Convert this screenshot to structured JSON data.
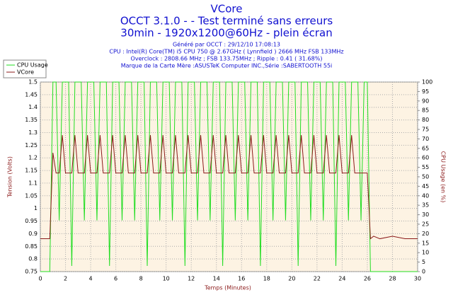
{
  "chart_data": {
    "type": "line",
    "title": "VCore",
    "subtitle": [
      "OCCT 3.1.0 -  - Test terminé sans erreurs",
      "30min - 1920x1200@60Hz - plein écran"
    ],
    "info": [
      "Généré par OCCT : 29/12/10 17:08:13",
      "CPU : Intel(R) Core(TM) i5 CPU 750 @ 2.67GHz ( Lynnfield ) 2666 MHz FSB 133MHz",
      "Overclock : 2808.66 MHz ; FSB 133.75MHz ; Ripple : 0.41 ( 31.68%)",
      "Marque de la Carte Mère :ASUSTeK Computer INC.,Série :SABERTOOTH 55i"
    ],
    "xlabel": "Temps (Minutes)",
    "ylabel": "Tension (Volts)",
    "y2label": "CPU Usage (en %)",
    "xlim": [
      0,
      30
    ],
    "xticks": [
      0,
      2,
      4,
      6,
      8,
      10,
      12,
      14,
      16,
      18,
      20,
      22,
      24,
      26,
      28,
      30
    ],
    "ylim": [
      0.75,
      1.5
    ],
    "yticks": [
      0.75,
      0.8,
      0.85,
      0.9,
      0.95,
      1,
      1.05,
      1.1,
      1.15,
      1.2,
      1.25,
      1.3,
      1.35,
      1.4,
      1.45,
      1.5
    ],
    "y2lim": [
      0,
      100
    ],
    "y2ticks": [
      0,
      5,
      10,
      15,
      20,
      25,
      30,
      35,
      40,
      45,
      50,
      55,
      60,
      65,
      70,
      75,
      80,
      85,
      90,
      95,
      100
    ],
    "grid": true,
    "legend": "top-left",
    "x": [
      0,
      0.25,
      0.5,
      0.75,
      1,
      1.25,
      1.5,
      1.75,
      2,
      2.25,
      2.5,
      2.75,
      3,
      3.25,
      3.5,
      3.75,
      4,
      4.25,
      4.5,
      4.75,
      5,
      5.25,
      5.5,
      5.75,
      6,
      6.25,
      6.5,
      6.75,
      7,
      7.25,
      7.5,
      7.75,
      8,
      8.25,
      8.5,
      8.75,
      9,
      9.25,
      9.5,
      9.75,
      10,
      10.25,
      10.5,
      10.75,
      11,
      11.25,
      11.5,
      11.75,
      12,
      12.25,
      12.5,
      12.75,
      13,
      13.25,
      13.5,
      13.75,
      14,
      14.25,
      14.5,
      14.75,
      15,
      15.25,
      15.5,
      15.75,
      16,
      16.25,
      16.5,
      16.75,
      17,
      17.25,
      17.5,
      17.75,
      18,
      18.25,
      18.5,
      18.75,
      19,
      19.25,
      19.5,
      19.75,
      20,
      20.25,
      20.5,
      20.75,
      21,
      21.25,
      21.5,
      21.75,
      22,
      22.25,
      22.5,
      22.75,
      23,
      23.25,
      23.5,
      23.75,
      24,
      24.25,
      24.5,
      24.75,
      25,
      25.25,
      25.5,
      25.75,
      26,
      26.25,
      26.5,
      27,
      28,
      29,
      30
    ],
    "series": [
      {
        "name": "CPU Usage",
        "color": "#22dd22",
        "axis": "y2",
        "values": [
          0,
          0,
          0,
          0,
          100,
          100,
          27,
          100,
          100,
          100,
          3,
          100,
          100,
          100,
          27,
          100,
          100,
          100,
          27,
          100,
          100,
          100,
          3,
          100,
          100,
          100,
          27,
          100,
          100,
          100,
          27,
          100,
          100,
          100,
          3,
          100,
          100,
          100,
          27,
          100,
          100,
          100,
          27,
          100,
          100,
          100,
          3,
          100,
          100,
          100,
          27,
          100,
          100,
          100,
          27,
          100,
          100,
          100,
          3,
          100,
          100,
          100,
          27,
          100,
          100,
          100,
          27,
          100,
          100,
          100,
          3,
          100,
          100,
          100,
          27,
          100,
          100,
          100,
          27,
          100,
          100,
          100,
          3,
          100,
          100,
          100,
          27,
          100,
          100,
          100,
          27,
          100,
          100,
          100,
          3,
          100,
          100,
          100,
          27,
          100,
          100,
          100,
          27,
          100,
          100,
          0,
          0,
          0,
          0,
          0,
          0
        ]
      },
      {
        "name": "VCore",
        "color": "#8b1a1a",
        "values": [
          0.88,
          0.88,
          0.88,
          0.88,
          1.22,
          1.14,
          1.14,
          1.29,
          1.14,
          1.14,
          1.14,
          1.29,
          1.14,
          1.14,
          1.14,
          1.29,
          1.14,
          1.14,
          1.14,
          1.29,
          1.14,
          1.14,
          1.14,
          1.29,
          1.14,
          1.14,
          1.14,
          1.29,
          1.14,
          1.14,
          1.14,
          1.29,
          1.14,
          1.14,
          1.14,
          1.29,
          1.14,
          1.14,
          1.14,
          1.29,
          1.14,
          1.14,
          1.14,
          1.29,
          1.14,
          1.14,
          1.14,
          1.29,
          1.14,
          1.14,
          1.14,
          1.29,
          1.14,
          1.14,
          1.14,
          1.29,
          1.14,
          1.14,
          1.14,
          1.29,
          1.14,
          1.14,
          1.14,
          1.29,
          1.14,
          1.14,
          1.14,
          1.29,
          1.14,
          1.14,
          1.14,
          1.29,
          1.14,
          1.14,
          1.14,
          1.29,
          1.14,
          1.14,
          1.14,
          1.29,
          1.14,
          1.14,
          1.14,
          1.29,
          1.14,
          1.14,
          1.14,
          1.29,
          1.14,
          1.14,
          1.14,
          1.29,
          1.14,
          1.14,
          1.14,
          1.29,
          1.14,
          1.14,
          1.14,
          1.29,
          1.14,
          1.14,
          1.14,
          1.14,
          1.14,
          0.88,
          0.89,
          0.88,
          0.89,
          0.88,
          0.88
        ]
      }
    ]
  }
}
